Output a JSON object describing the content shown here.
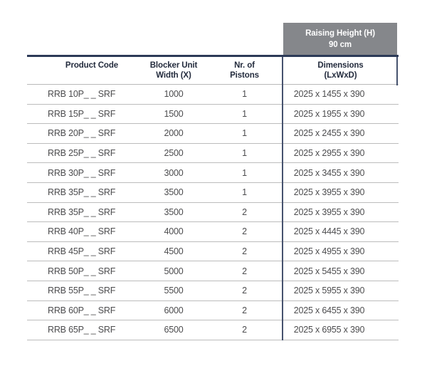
{
  "banner": {
    "line1": "Raising Height (H)",
    "line2": "90 cm"
  },
  "table": {
    "columns": [
      {
        "line1": "Product Code",
        "line2": ""
      },
      {
        "line1": "Blocker Unit",
        "line2": "Width (X)"
      },
      {
        "line1": "Nr. of",
        "line2": "Pistons"
      },
      {
        "line1": "Dimensions",
        "line2": "(LxWxD)"
      }
    ],
    "rows": [
      {
        "code": "RRB 10P_ _ SRF",
        "width": "1000",
        "pistons": "1",
        "dimensions": "2025 x 1455 x 390"
      },
      {
        "code": "RRB 15P_ _ SRF",
        "width": "1500",
        "pistons": "1",
        "dimensions": "2025 x 1955 x 390"
      },
      {
        "code": "RRB 20P_ _ SRF",
        "width": "2000",
        "pistons": "1",
        "dimensions": "2025 x 2455 x 390"
      },
      {
        "code": "RRB 25P_ _ SRF",
        "width": "2500",
        "pistons": "1",
        "dimensions": "2025 x 2955 x 390"
      },
      {
        "code": "RRB 30P_ _ SRF",
        "width": "3000",
        "pistons": "1",
        "dimensions": "2025 x 3455 x 390"
      },
      {
        "code": "RRB 35P_ _ SRF",
        "width": "3500",
        "pistons": "1",
        "dimensions": "2025 x 3955 x 390"
      },
      {
        "code": "RRB 35P_ _ SRF",
        "width": "3500",
        "pistons": "2",
        "dimensions": "2025 x 3955 x 390"
      },
      {
        "code": "RRB 40P_ _ SRF",
        "width": "4000",
        "pistons": "2",
        "dimensions": "2025 x 4445 x 390"
      },
      {
        "code": "RRB 45P_ _ SRF",
        "width": "4500",
        "pistons": "2",
        "dimensions": "2025 x 4955 x 390"
      },
      {
        "code": "RRB 50P_ _ SRF",
        "width": "5000",
        "pistons": "2",
        "dimensions": "2025 x 5455 x 390"
      },
      {
        "code": "RRB 55P_ _ SRF",
        "width": "5500",
        "pistons": "2",
        "dimensions": "2025 x 5955 x 390"
      },
      {
        "code": "RRB 60P_ _ SRF",
        "width": "6000",
        "pistons": "2",
        "dimensions": "2025 x 6455 x 390"
      },
      {
        "code": "RRB 65P_ _ SRF",
        "width": "6500",
        "pistons": "2",
        "dimensions": "2025 x 6955 x 390"
      }
    ]
  },
  "colors": {
    "banner_background": "#85878b",
    "banner_text": "#ffffff",
    "thick_rule": "#2c3a57",
    "vertical_divider": "#46526e",
    "row_separator": "#bcbcbc",
    "header_text": "#232b3d",
    "data_text": "#4c4c4e"
  }
}
